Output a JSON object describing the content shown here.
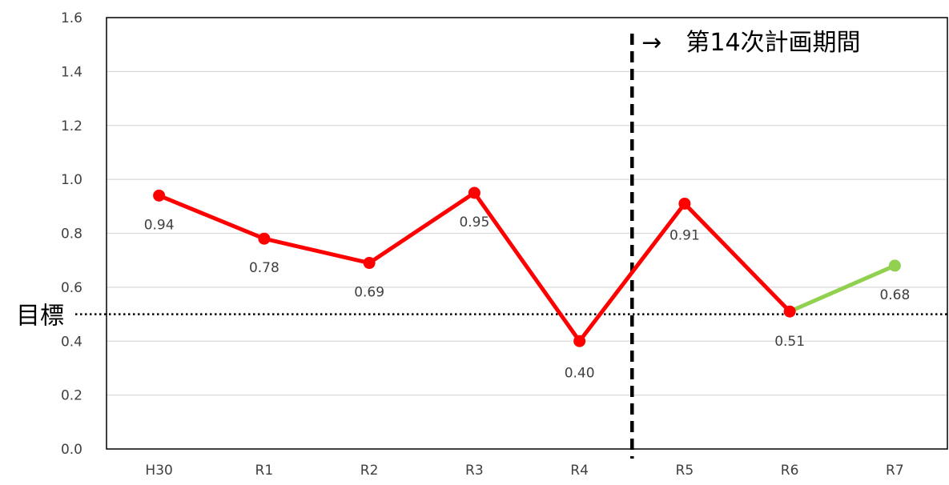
{
  "chart_data": {
    "type": "line",
    "categories": [
      "H30",
      "R1",
      "R2",
      "R3",
      "R4",
      "R5",
      "R6",
      "R7"
    ],
    "series": [
      {
        "values": [
          0.94,
          0.78,
          0.69,
          0.95,
          0.4,
          0.91,
          0.51,
          null
        ],
        "color": "#ff0000"
      },
      {
        "values": [
          null,
          null,
          null,
          null,
          null,
          null,
          0.51,
          0.68
        ],
        "color": "#92d050"
      }
    ],
    "data_labels": [
      "0.94",
      "0.78",
      "0.69",
      "0.95",
      "0.40",
      "0.91",
      "0.51",
      "0.68"
    ],
    "ylim": [
      0,
      1.6
    ],
    "yticks": [
      "0.0",
      "0.2",
      "0.4",
      "0.6",
      "0.8",
      "1.0",
      "1.2",
      "1.4",
      "1.6"
    ],
    "grid": true,
    "target": {
      "label": "目標",
      "value": 0.5
    },
    "period_marker": {
      "label": "→　第14次計画期間",
      "between": [
        "R4",
        "R5"
      ]
    }
  }
}
